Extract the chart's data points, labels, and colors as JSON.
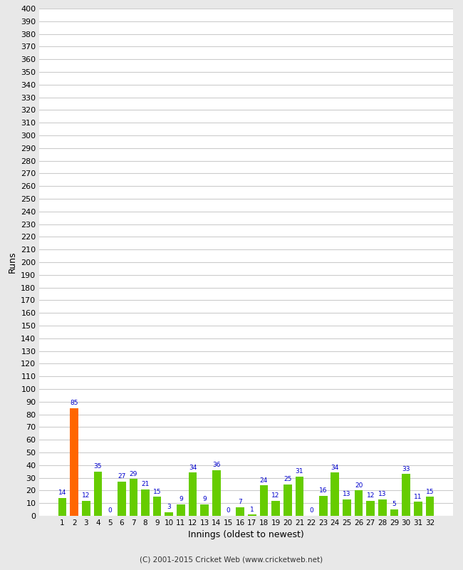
{
  "innings": [
    1,
    2,
    3,
    4,
    5,
    6,
    7,
    8,
    9,
    10,
    11,
    12,
    13,
    14,
    15,
    16,
    17,
    18,
    19,
    20,
    21,
    22,
    23,
    24,
    25,
    26,
    27,
    28,
    29,
    30,
    31,
    32
  ],
  "runs": [
    14,
    85,
    12,
    35,
    0,
    27,
    29,
    21,
    15,
    3,
    9,
    34,
    9,
    36,
    0,
    7,
    1,
    24,
    12,
    25,
    31,
    0,
    16,
    34,
    13,
    20,
    12,
    13,
    5,
    33,
    11,
    15
  ],
  "colors": [
    "#66cc00",
    "#ff6600",
    "#66cc00",
    "#66cc00",
    "#66cc00",
    "#66cc00",
    "#66cc00",
    "#66cc00",
    "#66cc00",
    "#66cc00",
    "#66cc00",
    "#66cc00",
    "#66cc00",
    "#66cc00",
    "#66cc00",
    "#66cc00",
    "#66cc00",
    "#66cc00",
    "#66cc00",
    "#66cc00",
    "#66cc00",
    "#66cc00",
    "#66cc00",
    "#66cc00",
    "#66cc00",
    "#66cc00",
    "#66cc00",
    "#66cc00",
    "#66cc00",
    "#66cc00",
    "#66cc00",
    "#66cc00"
  ],
  "xlabel": "Innings (oldest to newest)",
  "ylabel": "Runs",
  "ylim": [
    0,
    400
  ],
  "yticks": [
    0,
    10,
    20,
    30,
    40,
    50,
    60,
    70,
    80,
    90,
    100,
    110,
    120,
    130,
    140,
    150,
    160,
    170,
    180,
    190,
    200,
    210,
    220,
    230,
    240,
    250,
    260,
    270,
    280,
    290,
    300,
    310,
    320,
    330,
    340,
    350,
    360,
    370,
    380,
    390,
    400
  ],
  "background_color": "#e8e8e8",
  "plot_bg_color": "#ffffff",
  "value_color": "#0000cc",
  "footer": "(C) 2001-2015 Cricket Web (www.cricketweb.net)"
}
